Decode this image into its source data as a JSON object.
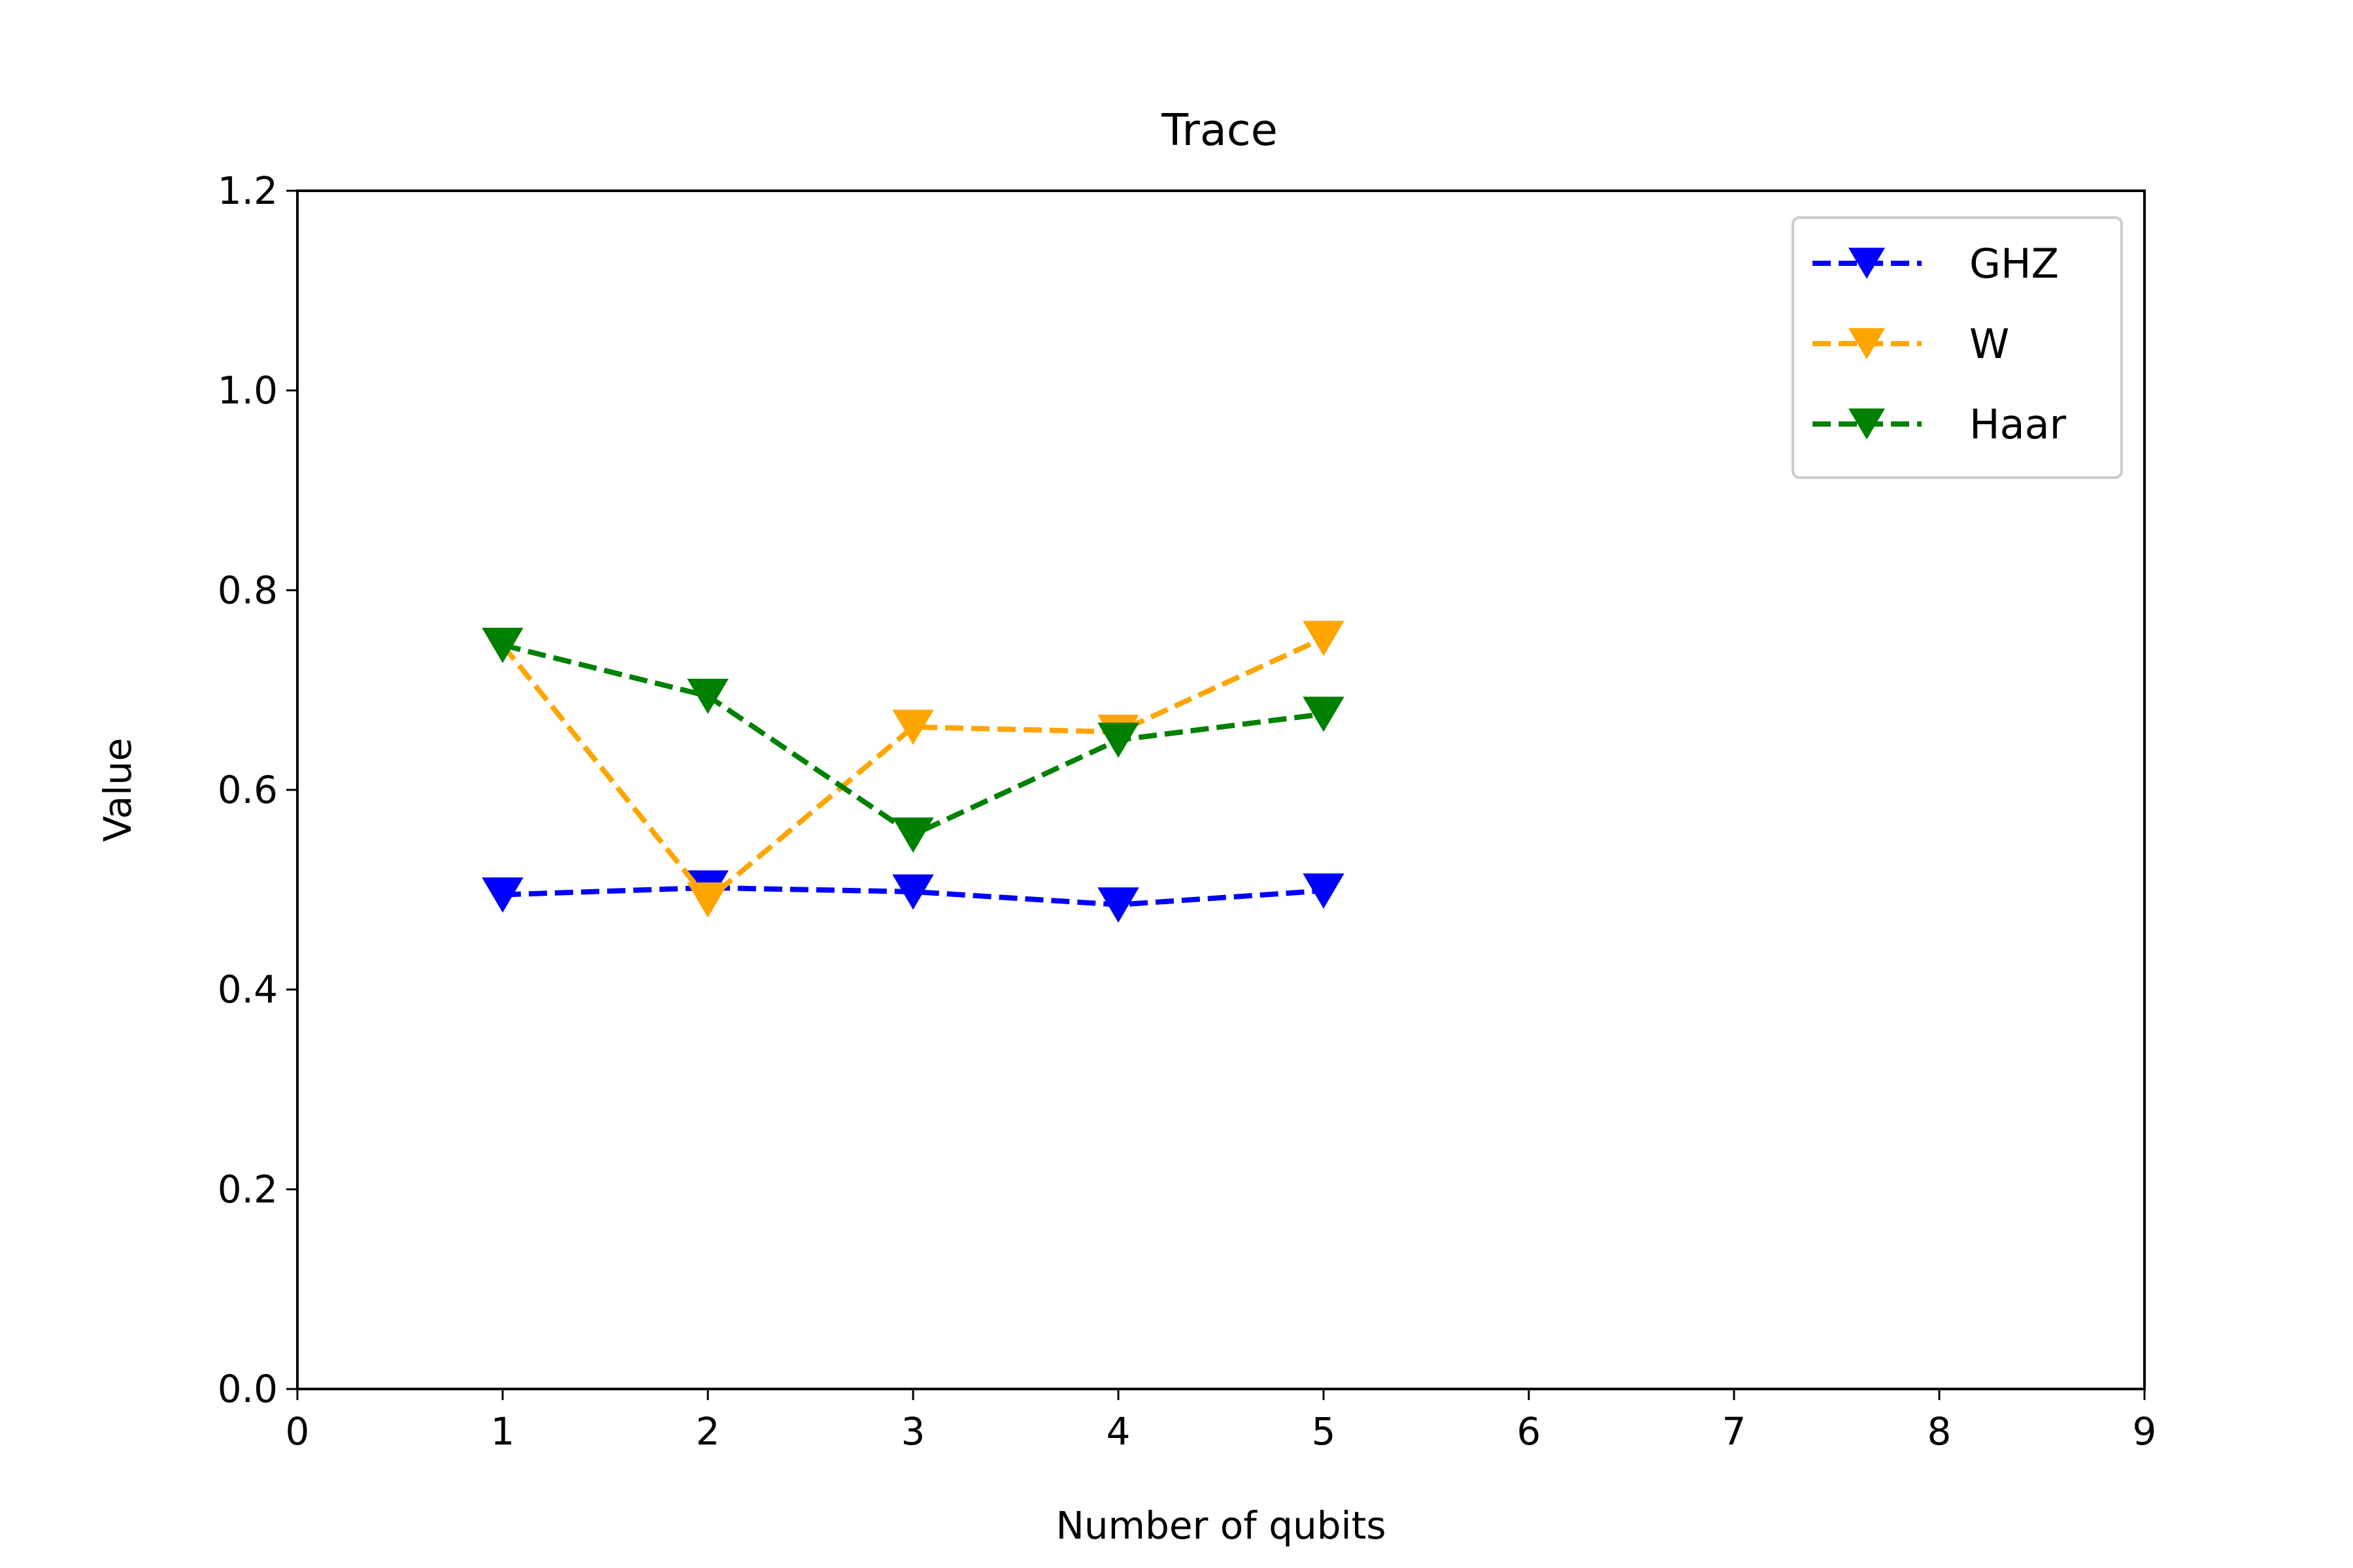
{
  "chart_data": {
    "type": "line",
    "title": "Trace",
    "xlabel": "Number of qubits",
    "ylabel": "Value",
    "xlim": [
      0,
      9
    ],
    "ylim": [
      0,
      1.2
    ],
    "xticks": [
      "0",
      "1",
      "2",
      "3",
      "4",
      "5",
      "6",
      "7",
      "8",
      "9"
    ],
    "yticks": [
      "0.0",
      "0.2",
      "0.4",
      "0.6",
      "0.8",
      "1.0",
      "1.2"
    ],
    "grid": false,
    "legend_position": "top-right",
    "line_style": "dashed",
    "marker": "triangle-down",
    "x": [
      1,
      2,
      3,
      4,
      5
    ],
    "series": [
      {
        "name": "GHZ",
        "color": "#0000ff",
        "values": [
          0.495,
          0.502,
          0.498,
          0.485,
          0.499
        ]
      },
      {
        "name": "W",
        "color": "#ffa500",
        "values": [
          0.745,
          0.49,
          0.663,
          0.658,
          0.752
        ]
      },
      {
        "name": "Haar",
        "color": "#008000",
        "values": [
          0.745,
          0.694,
          0.555,
          0.65,
          0.676
        ]
      }
    ]
  }
}
